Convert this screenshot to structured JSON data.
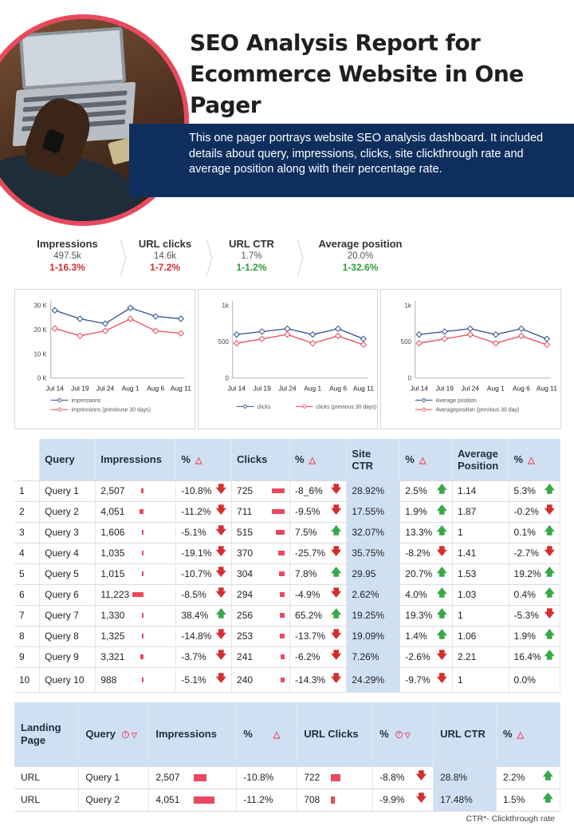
{
  "header": {
    "title": "SEO Analysis Report for Ecommerce Website in One Pager",
    "description": "This one pager portrays website SEO analysis dashboard. It included details about query, impressions, clicks, site clickthrough rate and average position along with their percentage rate."
  },
  "kpis": [
    {
      "label": "Impressions",
      "value": "497.5k",
      "change": "1-16.3%",
      "trend": "down"
    },
    {
      "label": "URL clicks",
      "value": "14.6k",
      "change": "1-7.2%",
      "trend": "down"
    },
    {
      "label": "URL CTR",
      "value": "1.7%",
      "change": "1-1.2%",
      "trend": "up"
    },
    {
      "label": "Average position",
      "value": "20.0%",
      "change": "1-32.6%",
      "trend": "up"
    }
  ],
  "colors": {
    "accent": "#e8495f",
    "navy": "#0e2f5e",
    "header_fill": "#cfe0f3",
    "series_primary": "#2d4f8e",
    "series_previous": "#e8495f"
  },
  "chart_data": [
    {
      "type": "line",
      "categories": [
        "Jul 14",
        "Jul 19",
        "Jul 24",
        "Aug 1",
        "Aug 6",
        "Aug 11"
      ],
      "y_ticks": [
        "30 K",
        "20 K",
        "10 K",
        "0 K"
      ],
      "ylim": [
        0,
        30000
      ],
      "series": [
        {
          "name": "impressions",
          "values": [
            28000,
            24500,
            22500,
            29000,
            25500,
            24500
          ]
        },
        {
          "name": "impressions (previouse 30 days)",
          "values": [
            20500,
            17500,
            19500,
            24500,
            19500,
            18500
          ]
        }
      ]
    },
    {
      "type": "line",
      "categories": [
        "Jul 14",
        "Jul 19",
        "Jul 24",
        "Aug 1",
        "Aug 6",
        "Aug 11"
      ],
      "y_ticks": [
        "1k",
        "500",
        "0"
      ],
      "ylim": [
        0,
        1000
      ],
      "series": [
        {
          "name": "clicks",
          "values": [
            600,
            640,
            680,
            600,
            680,
            540
          ]
        },
        {
          "name": "clicks (previous 30 days)",
          "values": [
            480,
            540,
            600,
            480,
            580,
            460
          ]
        }
      ]
    },
    {
      "type": "line",
      "categories": [
        "Jul 14",
        "Jul 19",
        "Jul 24",
        "Aug 1",
        "Aug 6",
        "Aug 11"
      ],
      "y_ticks": [
        "1k",
        "500",
        "0"
      ],
      "ylim": [
        0,
        1000
      ],
      "series": [
        {
          "name": "Average position",
          "values": [
            600,
            640,
            680,
            600,
            680,
            540
          ]
        },
        {
          "name": "Averageposition (previous 30 day)",
          "values": [
            480,
            540,
            600,
            480,
            580,
            460
          ]
        }
      ]
    }
  ],
  "query_table": {
    "headers": [
      "",
      "Query",
      "Impressions",
      "%",
      "Clicks",
      "%",
      "Site CTR",
      "%",
      "Average Position",
      "%"
    ],
    "rows": [
      {
        "n": "1",
        "query": "Query 1",
        "impr": "2,507",
        "impr_pct": "-10.8%",
        "impr_dir": "down",
        "clicks": "725",
        "clicks_pct": "-8_6%",
        "clicks_dir": "down",
        "ctr": "28.92%",
        "ctr_pct": "2.5%",
        "ctr_dir": "up",
        "pos": "1.14",
        "pos_pct": "5.3%",
        "pos_dir": "up"
      },
      {
        "n": "2",
        "query": "Query 2",
        "impr": "4,051",
        "impr_pct": "-11.2%",
        "impr_dir": "down",
        "clicks": "711",
        "clicks_pct": "-9.5%",
        "clicks_dir": "down",
        "ctr": "17.55%",
        "ctr_pct": "1.9%",
        "ctr_dir": "up",
        "pos": "1.87",
        "pos_pct": "-0.2%",
        "pos_dir": "down"
      },
      {
        "n": "3",
        "query": "Query 3",
        "impr": "1,606",
        "impr_pct": "-5.1%",
        "impr_dir": "down",
        "clicks": "515",
        "clicks_pct": "7.5%",
        "clicks_dir": "up",
        "ctr": "32.07%",
        "ctr_pct": "13.3%",
        "ctr_dir": "up",
        "pos": "1",
        "pos_pct": "0.1%",
        "pos_dir": "up"
      },
      {
        "n": "4",
        "query": "Query 4",
        "impr": "1,035",
        "impr_pct": "-19.1%",
        "impr_dir": "down",
        "clicks": "370",
        "clicks_pct": "-25.7%",
        "clicks_dir": "down",
        "ctr": "35.75%",
        "ctr_pct": "-8.2%",
        "ctr_dir": "down",
        "pos": "1.41",
        "pos_pct": "-2.7%",
        "pos_dir": "down"
      },
      {
        "n": "5",
        "query": "Query 5",
        "impr": "1,015",
        "impr_pct": "-10.7%",
        "impr_dir": "down",
        "clicks": "304",
        "clicks_pct": "7.8%",
        "clicks_dir": "up",
        "ctr": "29.95",
        "ctr_pct": "20.7%",
        "ctr_dir": "up",
        "pos": "1.53",
        "pos_pct": "19.2%",
        "pos_dir": "up"
      },
      {
        "n": "6",
        "query": "Query 6",
        "impr": "11,223",
        "impr_pct": "-8.5%",
        "impr_dir": "down",
        "clicks": "294",
        "clicks_pct": "-4.9%",
        "clicks_dir": "down",
        "ctr": "2.62%",
        "ctr_pct": "4.0%",
        "ctr_dir": "up",
        "pos": "1.03",
        "pos_pct": "0.4%",
        "pos_dir": "up"
      },
      {
        "n": "7",
        "query": "Query 7",
        "impr": "1,330",
        "impr_pct": "38.4%",
        "impr_dir": "up",
        "clicks": "256",
        "clicks_pct": "65.2%",
        "clicks_dir": "up",
        "ctr": "19.25%",
        "ctr_pct": "19.3%",
        "ctr_dir": "up",
        "pos": "1",
        "pos_pct": "-5.3%",
        "pos_dir": "down"
      },
      {
        "n": "8",
        "query": "Query 8",
        "impr": "1,325",
        "impr_pct": "-14.8%",
        "impr_dir": "down",
        "clicks": "253",
        "clicks_pct": "-13.7%",
        "clicks_dir": "down",
        "ctr": "19.09%",
        "ctr_pct": "1.4%",
        "ctr_dir": "up",
        "pos": "1.06",
        "pos_pct": "1.9%",
        "pos_dir": "up"
      },
      {
        "n": "9",
        "query": "Query 9",
        "impr": "3,321",
        "impr_pct": "-3.7%",
        "impr_dir": "down",
        "clicks": "241",
        "clicks_pct": "-6.2%",
        "clicks_dir": "down",
        "ctr": "7.26%",
        "ctr_pct": "-2.6%",
        "ctr_dir": "down",
        "pos": "2.21",
        "pos_pct": "16.4%",
        "pos_dir": "up"
      },
      {
        "n": "10",
        "query": "Query 10",
        "impr": "988",
        "impr_pct": "-5.1%",
        "impr_dir": "down",
        "clicks": "240",
        "clicks_pct": "-14.3%",
        "clicks_dir": "down",
        "ctr": "24.29%",
        "ctr_pct": "-9.7%",
        "ctr_dir": "down",
        "pos": "1",
        "pos_pct": "0.0%",
        "pos_dir": "none"
      }
    ]
  },
  "landing_table": {
    "headers": [
      "Landing Page",
      "Query",
      "Impressions",
      "%",
      "URL Clicks",
      "%",
      "URL CTR",
      "%"
    ],
    "rows": [
      {
        "page": "URL",
        "query": "Query 1",
        "impr": "2,507",
        "impr_pct": "-10.8%",
        "clicks": "722",
        "clicks_pct": "-8.8%",
        "clicks_dir": "down",
        "ctr": "28.8%",
        "ctr_pct": "2.2%",
        "ctr_dir": "up"
      },
      {
        "page": "URL",
        "query": "Query 2",
        "impr": "4,051",
        "impr_pct": "-11.2%",
        "clicks": "708",
        "clicks_pct": "-9.9%",
        "clicks_dir": "down",
        "ctr": "17.48%",
        "ctr_pct": "1.5%",
        "ctr_dir": "up"
      }
    ]
  },
  "footnote": "CTR*- Clickthrough rate"
}
